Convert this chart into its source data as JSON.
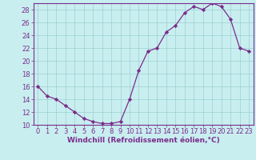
{
  "x": [
    0,
    1,
    2,
    3,
    4,
    5,
    6,
    7,
    8,
    9,
    10,
    11,
    12,
    13,
    14,
    15,
    16,
    17,
    18,
    19,
    20,
    21,
    22,
    23
  ],
  "y": [
    16,
    14.5,
    14,
    13,
    12,
    11,
    10.5,
    10.2,
    10.2,
    10.5,
    14,
    18.5,
    21.5,
    22,
    24.5,
    25.5,
    27.5,
    28.5,
    28,
    29,
    28.5,
    26.5,
    22,
    21.5
  ],
  "line_color": "#7b2d8b",
  "marker_color": "#7b2d8b",
  "bg_color": "#c8eef0",
  "grid_color": "#9ecfcf",
  "xlabel": "Windchill (Refroidissement éolien,°C)",
  "ylim": [
    10,
    29
  ],
  "xlim": [
    -0.5,
    23.5
  ],
  "yticks": [
    10,
    12,
    14,
    16,
    18,
    20,
    22,
    24,
    26,
    28
  ],
  "xticks": [
    0,
    1,
    2,
    3,
    4,
    5,
    6,
    7,
    8,
    9,
    10,
    11,
    12,
    13,
    14,
    15,
    16,
    17,
    18,
    19,
    20,
    21,
    22,
    23
  ],
  "xlabel_fontsize": 6.5,
  "tick_fontsize": 6.0,
  "axis_color": "#7b2d8b",
  "spine_color": "#7b2d8b"
}
